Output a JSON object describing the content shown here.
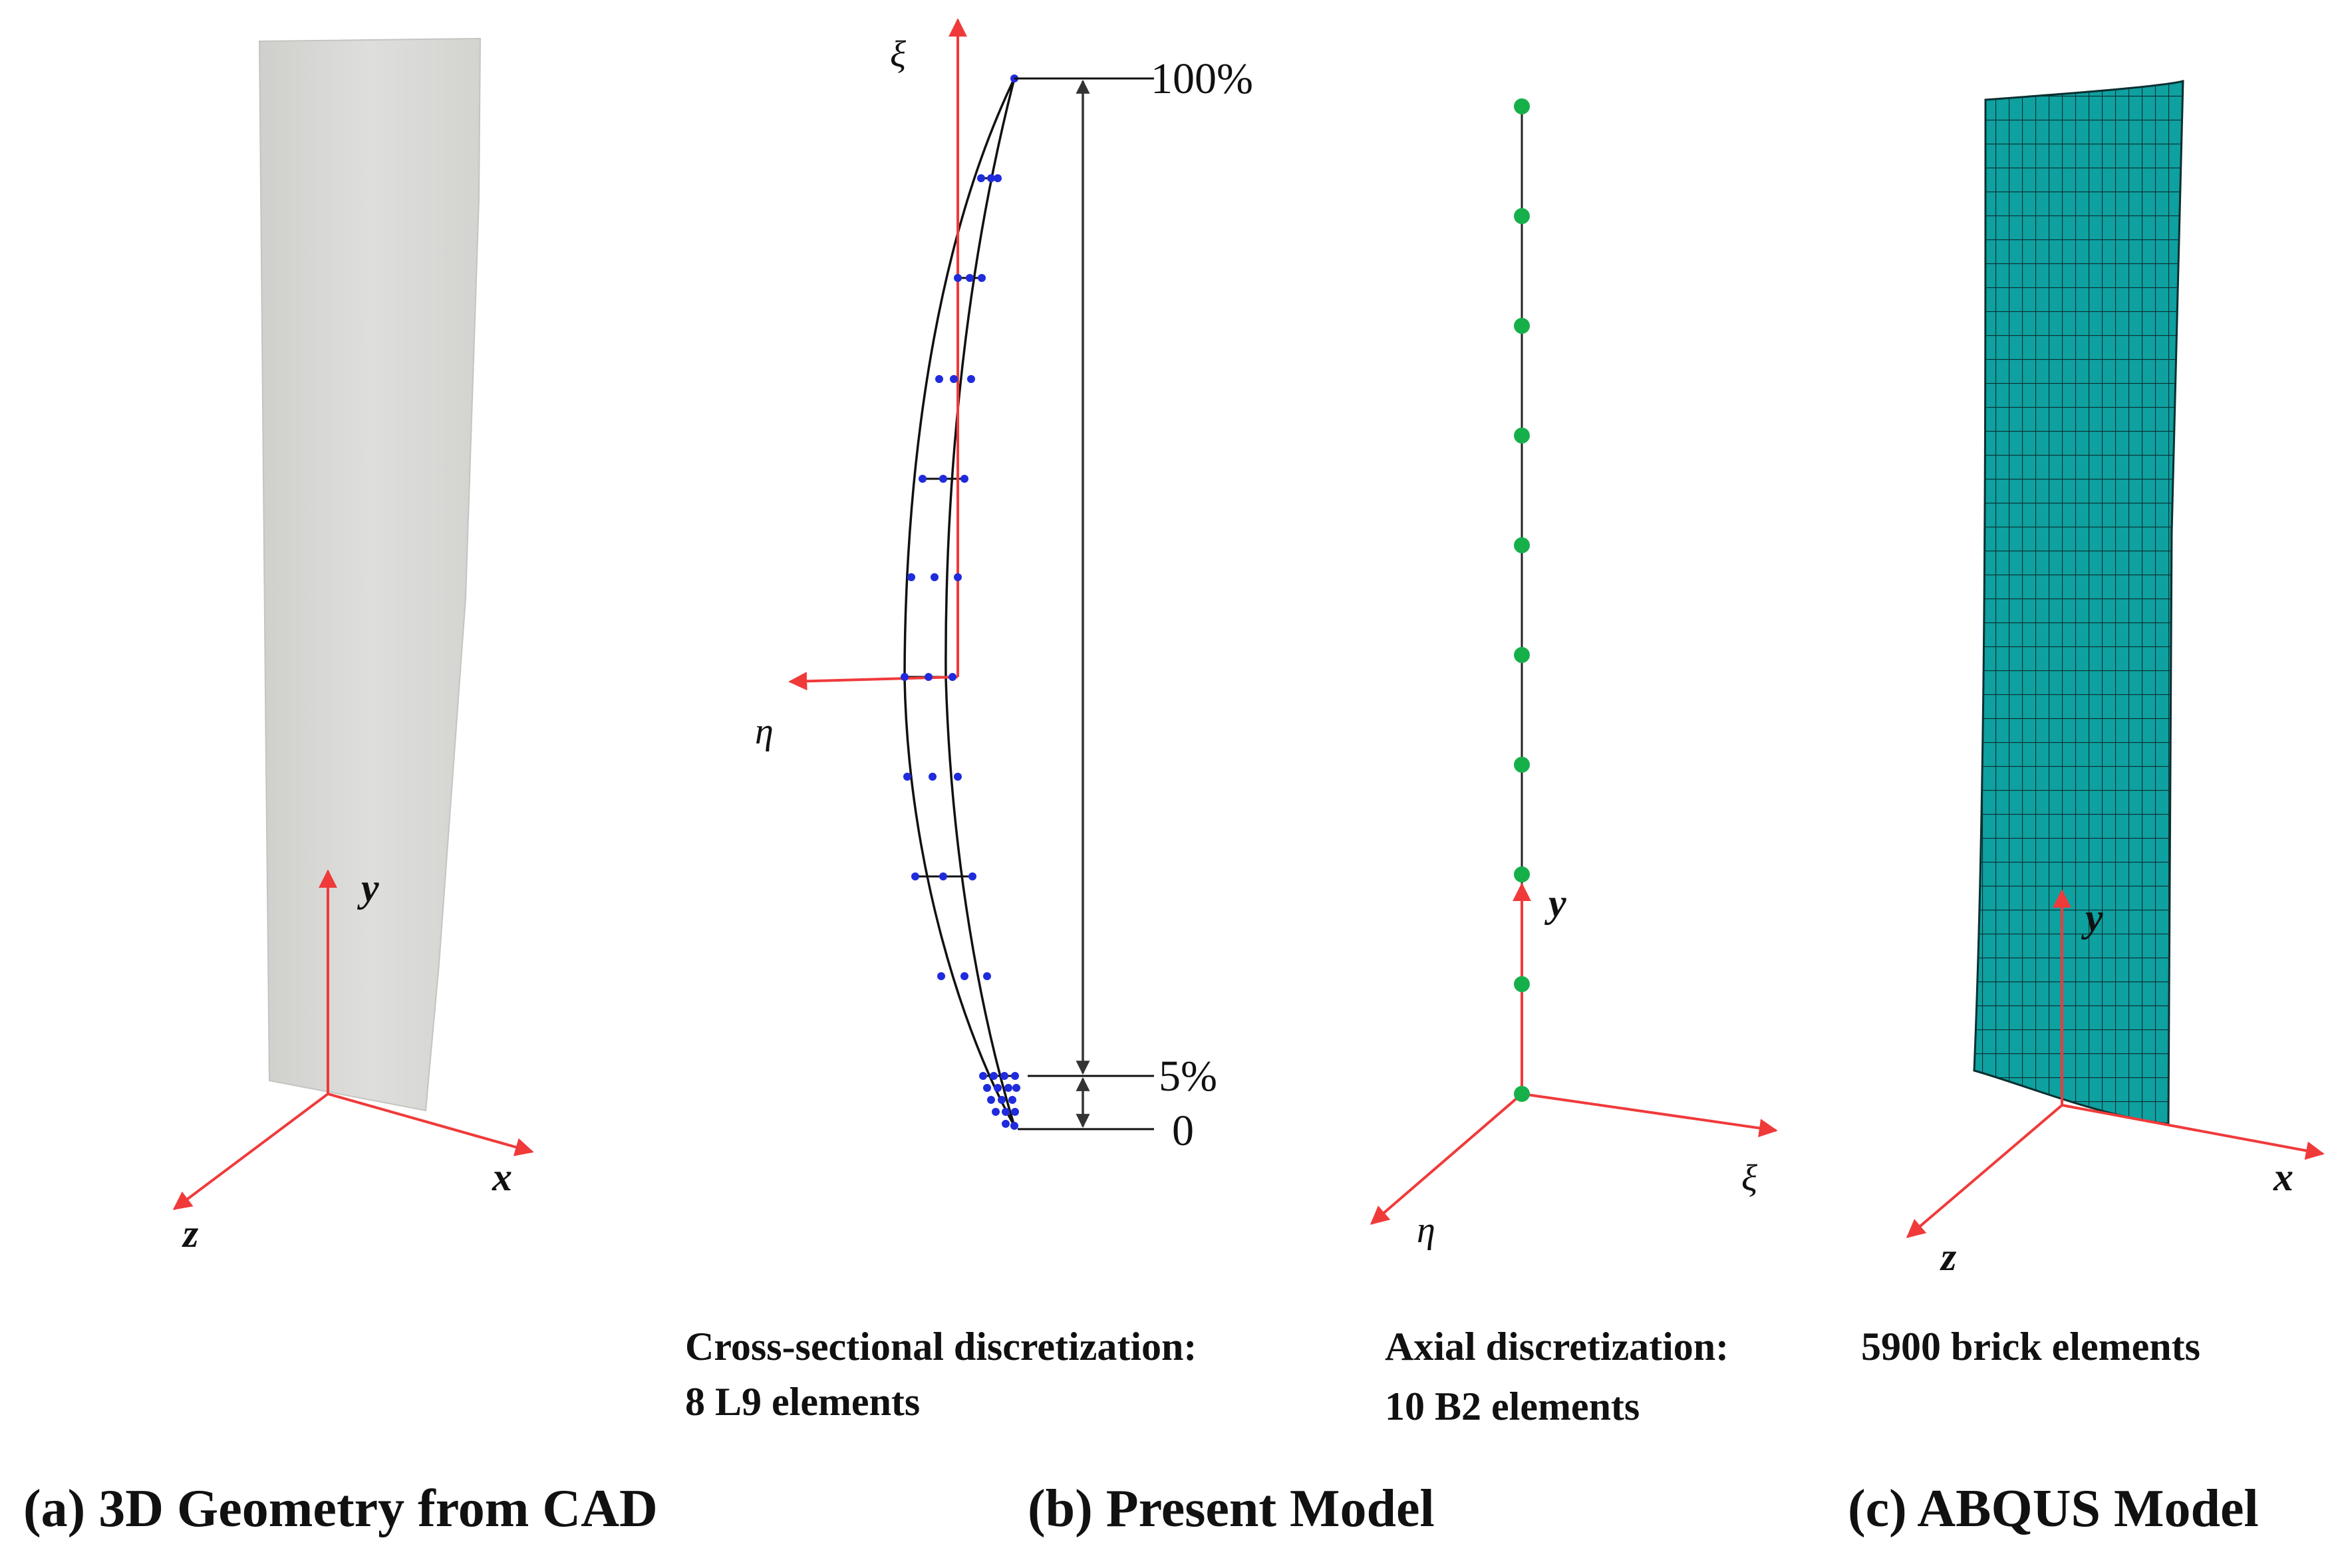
{
  "colors": {
    "axis": "#f03a3a",
    "node_blue": "#1f2bdc",
    "node_green": "#16b04a",
    "mesh_fill": "#0fa0a0",
    "mesh_line": "#0a2f30",
    "blade_fill": "#d9d9d7",
    "outline": "#111111"
  },
  "panel_a": {
    "axis_x": "x",
    "axis_y": "y",
    "axis_z": "z",
    "caption": "(a) 3D Geometry from CAD"
  },
  "panel_b": {
    "cross_section": {
      "axis_xi": "ξ",
      "axis_eta": "η",
      "dim_top": "100%",
      "dim_mid": "5%",
      "dim_bottom": "0",
      "label_line1": "Cross-sectional discretization:",
      "label_line2": "8 L9 elements"
    },
    "axial": {
      "axis_y": "y",
      "axis_xi": "ξ",
      "axis_eta": "η",
      "label_line1": "Axial discretization:",
      "label_line2": "10 B2 elements"
    },
    "caption": "(b) Present Model"
  },
  "panel_c": {
    "axis_x": "x",
    "axis_y": "y",
    "axis_z": "z",
    "label": "5900 brick elements",
    "caption": "(c) ABQUS Model"
  }
}
